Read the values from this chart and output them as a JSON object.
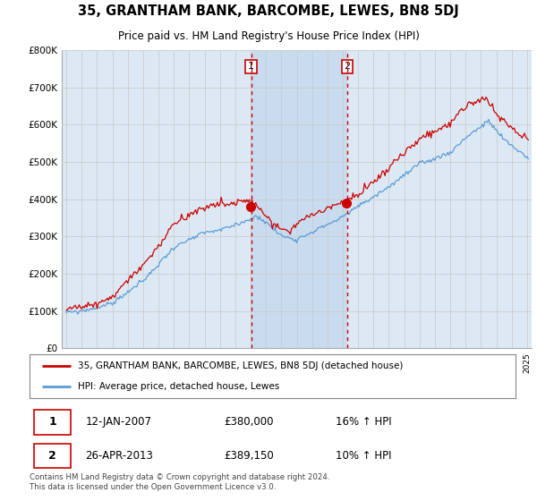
{
  "title": "35, GRANTHAM BANK, BARCOMBE, LEWES, BN8 5DJ",
  "subtitle": "Price paid vs. HM Land Registry's House Price Index (HPI)",
  "legend_line1": "35, GRANTHAM BANK, BARCOMBE, LEWES, BN8 5DJ (detached house)",
  "legend_line2": "HPI: Average price, detached house, Lewes",
  "transaction1_date": "12-JAN-2007",
  "transaction1_price": "£380,000",
  "transaction1_hpi": "16% ↑ HPI",
  "transaction2_date": "26-APR-2013",
  "transaction2_price": "£389,150",
  "transaction2_hpi": "10% ↑ HPI",
  "footnote": "Contains HM Land Registry data © Crown copyright and database right 2024.\nThis data is licensed under the Open Government Licence v3.0.",
  "hpi_color": "#5b9bd5",
  "price_color": "#cc0000",
  "bg_color": "#dce9f5",
  "shade_color": "#c5d9ef",
  "grid_color": "#cccccc",
  "vline_color": "#cc0000",
  "marker_color": "#cc0000",
  "ylim_min": 0,
  "ylim_max": 800000,
  "ytick_values": [
    0,
    100000,
    200000,
    300000,
    400000,
    500000,
    600000,
    700000,
    800000
  ],
  "ytick_labels": [
    "£0",
    "£100K",
    "£200K",
    "£300K",
    "£400K",
    "£500K",
    "£600K",
    "£700K",
    "£800K"
  ],
  "xstart_year": 1995,
  "xend_year": 2025,
  "t1_year": 2007.04,
  "t2_year": 2013.29,
  "t1_price": 380000,
  "t2_price": 389150
}
